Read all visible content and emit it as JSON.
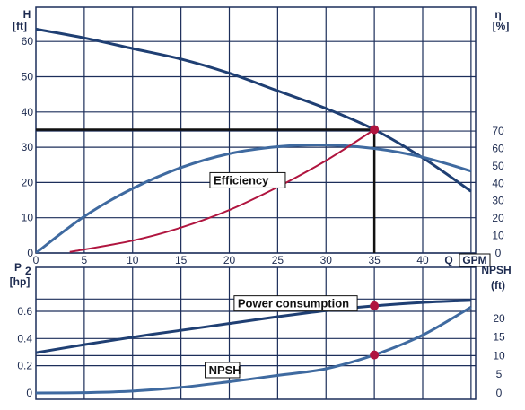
{
  "chart_data": [
    {
      "type": "line",
      "panel": "upper",
      "x_axis": {
        "ticks": [
          0,
          5,
          10,
          15,
          20,
          25,
          30,
          35,
          40
        ],
        "label_q": "Q",
        "label_unit": "GPM",
        "range": [
          0,
          45
        ]
      },
      "y_left": {
        "label_top": "H",
        "label_unit": "[ft]",
        "ticks": [
          0,
          10,
          20,
          30,
          40,
          50,
          60
        ],
        "range": [
          0,
          70
        ]
      },
      "y_right": {
        "label_top": "η",
        "label_unit": "[%]",
        "ticks": [
          0,
          10,
          20,
          30,
          40,
          50,
          60,
          70
        ],
        "range": [
          0,
          70
        ]
      },
      "grid": true,
      "series": [
        {
          "name": "",
          "axis": "left",
          "color": "#1f3f73",
          "x": [
            0,
            5,
            10,
            15,
            20,
            25,
            30,
            35,
            40,
            45
          ],
          "y": [
            63.5,
            61,
            58,
            55,
            51,
            46,
            41,
            35,
            27,
            17.5
          ]
        },
        {
          "name": "Efficiency",
          "axis": "right",
          "color": "#3f6aa0",
          "x": [
            0,
            5,
            10,
            15,
            20,
            25,
            30,
            35,
            40,
            45
          ],
          "y": [
            0,
            21,
            37,
            49,
            57,
            61,
            62,
            60,
            55,
            47
          ]
        },
        {
          "name": "",
          "axis": "left",
          "color": "#b0153f",
          "x": [
            3.5,
            10,
            15,
            20,
            25,
            30,
            35
          ],
          "y": [
            0.3,
            3.5,
            7.2,
            12.2,
            18.7,
            26.2,
            35
          ]
        }
      ],
      "duty_point": {
        "x": 35,
        "y": 35,
        "color": "#b0153f"
      },
      "annotations": [
        {
          "text": "Efficiency",
          "x": 18,
          "y": 20.5
        }
      ]
    },
    {
      "type": "line",
      "panel": "lower",
      "x_axis": {
        "ticks": [
          0,
          5,
          10,
          15,
          20,
          25,
          30,
          35,
          40
        ],
        "range": [
          0,
          45
        ]
      },
      "y_left": {
        "label_top": "P",
        "label_sub": "2",
        "label_unit": "[hp]",
        "ticks": [
          0,
          0.2,
          0.4,
          0.6
        ],
        "range": [
          0,
          0.7
        ]
      },
      "y_right": {
        "label_top": "NPSH",
        "label_unit": "(ft)",
        "ticks": [
          0,
          5,
          10,
          15,
          20
        ],
        "range": [
          0,
          25
        ]
      },
      "grid": true,
      "series": [
        {
          "name": "Power consumption",
          "axis": "left",
          "color": "#1f3f73",
          "x": [
            0,
            5,
            10,
            15,
            20,
            25,
            30,
            35,
            40,
            45
          ],
          "y": [
            0.295,
            0.355,
            0.41,
            0.46,
            0.51,
            0.56,
            0.605,
            0.64,
            0.665,
            0.68
          ]
        },
        {
          "name": "NPSH",
          "axis": "right",
          "color": "#3f6aa0",
          "x": [
            0,
            5,
            10,
            15,
            20,
            25,
            30,
            35,
            40,
            45
          ],
          "y": [
            0,
            0.1,
            0.5,
            1.5,
            3,
            4.7,
            6.5,
            10.2,
            15.5,
            23
          ]
        }
      ],
      "points": [
        {
          "series": "Power consumption",
          "x": 35,
          "y": 0.64,
          "color": "#b0153f"
        },
        {
          "series": "NPSH",
          "x": 35,
          "y": 10.2,
          "color": "#b0153f"
        }
      ],
      "annotations": [
        {
          "text": "Power consumption",
          "x": 20.5,
          "y": 0.655
        },
        {
          "text": "NPSH",
          "x": 17.5,
          "y": 0.165
        }
      ]
    }
  ]
}
